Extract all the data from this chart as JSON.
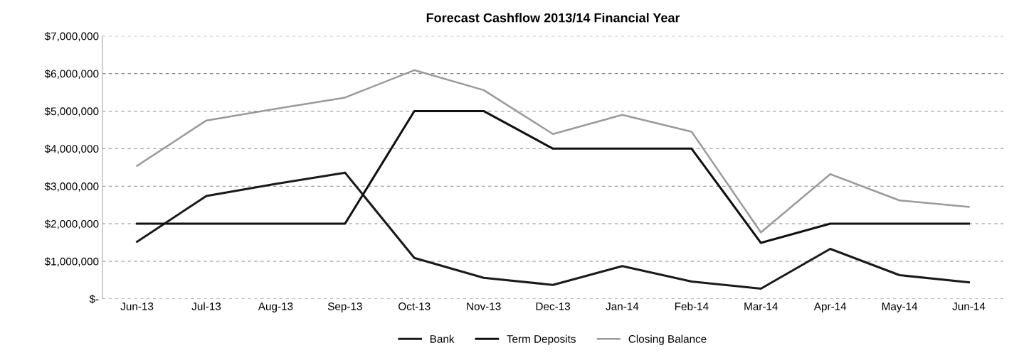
{
  "chart_data": {
    "type": "line",
    "title": "Forecast Cashflow 2013/14 Financial Year",
    "categories": [
      "Jun-13",
      "Jul-13",
      "Aug-13",
      "Sep-13",
      "Oct-13",
      "Nov-13",
      "Dec-13",
      "Jan-14",
      "Feb-14",
      "Mar-14",
      "Apr-14",
      "May-14",
      "Jun-14"
    ],
    "series": [
      {
        "name": "Bank",
        "color": "#1a1a1a",
        "values": [
          1520000,
          2740000,
          3060000,
          3360000,
          1090000,
          560000,
          370000,
          870000,
          460000,
          270000,
          1330000,
          630000,
          440000
        ]
      },
      {
        "name": "Term Deposits",
        "color": "#111111",
        "values": [
          2000000,
          2000000,
          2000000,
          2000000,
          5000000,
          5000000,
          4000000,
          4000000,
          4000000,
          1490000,
          2000000,
          2000000,
          2000000
        ]
      },
      {
        "name": "Closing Balance",
        "color": "#9a9a9a",
        "values": [
          3540000,
          4750000,
          5060000,
          5360000,
          6090000,
          5560000,
          4390000,
          4900000,
          4450000,
          1770000,
          3320000,
          2620000,
          2450000
        ]
      }
    ],
    "ylim": [
      0,
      7000000
    ],
    "yticks": [
      {
        "value": 0,
        "label": "$-"
      },
      {
        "value": 1000000,
        "label": "$1,000,000"
      },
      {
        "value": 2000000,
        "label": "$2,000,000"
      },
      {
        "value": 3000000,
        "label": "$3,000,000"
      },
      {
        "value": 4000000,
        "label": "$4,000,000"
      },
      {
        "value": 5000000,
        "label": "$5,000,000"
      },
      {
        "value": 6000000,
        "label": "$6,000,000"
      },
      {
        "value": 7000000,
        "label": "$7,000,000"
      }
    ],
    "grid": "y",
    "legend": "bottom",
    "marker": "none",
    "line_style": "solid"
  }
}
